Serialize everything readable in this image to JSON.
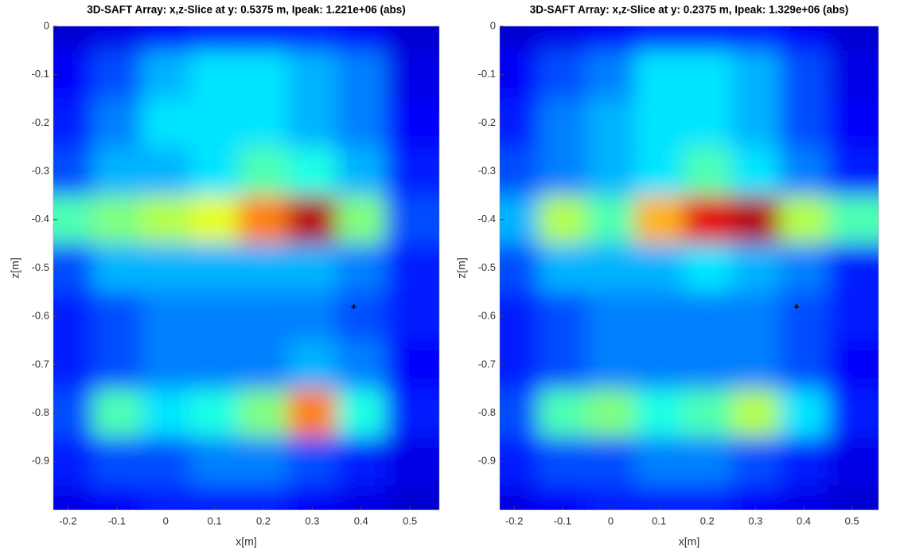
{
  "chart_data": [
    {
      "type": "heatmap",
      "title": "3D-SAFT Array: x,z-Slice at y: 0.5375 m, Ipeak: 1.221e+06 (abs)",
      "x_label": "x[m]",
      "y_label": "z[m]",
      "colormap": "jet",
      "xlim": [
        -0.23,
        0.56
      ],
      "ylim": [
        -1,
        0
      ],
      "xticks": [
        -0.2,
        -0.1,
        0,
        0.1,
        0.2,
        0.3,
        0.4,
        0.5
      ],
      "yticks": [
        0,
        -0.1,
        -0.2,
        -0.3,
        -0.4,
        -0.5,
        -0.6,
        -0.7,
        -0.8,
        -0.9
      ],
      "x": [
        -0.2,
        -0.1,
        0,
        0.1,
        0.2,
        0.3,
        0.4,
        0.5
      ],
      "y": [
        0,
        -0.1,
        -0.2,
        -0.3,
        -0.4,
        -0.5,
        -0.6,
        -0.7,
        -0.8,
        -0.9,
        -1.0
      ],
      "z": [
        [
          0.08,
          0.1,
          0.12,
          0.15,
          0.15,
          0.15,
          0.12,
          0.08
        ],
        [
          0.12,
          0.2,
          0.3,
          0.35,
          0.35,
          0.3,
          0.25,
          0.1
        ],
        [
          0.15,
          0.25,
          0.35,
          0.35,
          0.35,
          0.3,
          0.25,
          0.12
        ],
        [
          0.2,
          0.3,
          0.3,
          0.35,
          0.45,
          0.4,
          0.3,
          0.15
        ],
        [
          0.45,
          0.5,
          0.55,
          0.6,
          0.75,
          0.95,
          0.5,
          0.2
        ],
        [
          0.2,
          0.3,
          0.3,
          0.3,
          0.3,
          0.3,
          0.25,
          0.15
        ],
        [
          0.15,
          0.2,
          0.25,
          0.25,
          0.25,
          0.25,
          0.2,
          0.15
        ],
        [
          0.15,
          0.2,
          0.25,
          0.25,
          0.25,
          0.3,
          0.25,
          0.12
        ],
        [
          0.2,
          0.45,
          0.35,
          0.4,
          0.5,
          0.75,
          0.4,
          0.15
        ],
        [
          0.15,
          0.2,
          0.2,
          0.25,
          0.25,
          0.2,
          0.15,
          0.1
        ],
        [
          0.1,
          0.12,
          0.15,
          0.15,
          0.15,
          0.12,
          0.1,
          0.08
        ]
      ],
      "marker": {
        "x": 0.385,
        "y": -0.58
      }
    },
    {
      "type": "heatmap",
      "title": "3D-SAFT Array: x,z-Slice at y: 0.2375 m, Ipeak: 1.329e+06 (abs)",
      "x_label": "x[m]",
      "y_label": "z[m]",
      "colormap": "jet",
      "xlim": [
        -0.23,
        0.555
      ],
      "ylim": [
        -1,
        0
      ],
      "xticks": [
        -0.2,
        -0.1,
        0,
        0.1,
        0.2,
        0.3,
        0.4,
        0.5
      ],
      "yticks": [
        0,
        -0.1,
        -0.2,
        -0.3,
        -0.4,
        -0.5,
        -0.6,
        -0.7,
        -0.8,
        -0.9
      ],
      "x": [
        -0.2,
        -0.1,
        0,
        0.1,
        0.2,
        0.3,
        0.4,
        0.5
      ],
      "y": [
        0,
        -0.1,
        -0.2,
        -0.3,
        -0.4,
        -0.5,
        -0.6,
        -0.7,
        -0.8,
        -0.9,
        -1.0
      ],
      "z": [
        [
          0.08,
          0.1,
          0.12,
          0.15,
          0.15,
          0.15,
          0.12,
          0.08
        ],
        [
          0.12,
          0.2,
          0.25,
          0.35,
          0.35,
          0.3,
          0.2,
          0.1
        ],
        [
          0.15,
          0.25,
          0.3,
          0.35,
          0.35,
          0.3,
          0.2,
          0.12
        ],
        [
          0.2,
          0.25,
          0.3,
          0.35,
          0.45,
          0.35,
          0.25,
          0.15
        ],
        [
          0.3,
          0.55,
          0.45,
          0.7,
          0.9,
          0.95,
          0.55,
          0.45
        ],
        [
          0.2,
          0.3,
          0.3,
          0.3,
          0.35,
          0.3,
          0.25,
          0.15
        ],
        [
          0.15,
          0.2,
          0.25,
          0.25,
          0.25,
          0.25,
          0.2,
          0.15
        ],
        [
          0.15,
          0.2,
          0.25,
          0.25,
          0.25,
          0.25,
          0.2,
          0.12
        ],
        [
          0.2,
          0.45,
          0.5,
          0.4,
          0.45,
          0.55,
          0.35,
          0.15
        ],
        [
          0.15,
          0.2,
          0.2,
          0.25,
          0.25,
          0.2,
          0.15,
          0.1
        ],
        [
          0.1,
          0.12,
          0.15,
          0.15,
          0.15,
          0.12,
          0.1,
          0.08
        ]
      ],
      "marker": {
        "x": 0.385,
        "y": -0.58
      }
    }
  ]
}
